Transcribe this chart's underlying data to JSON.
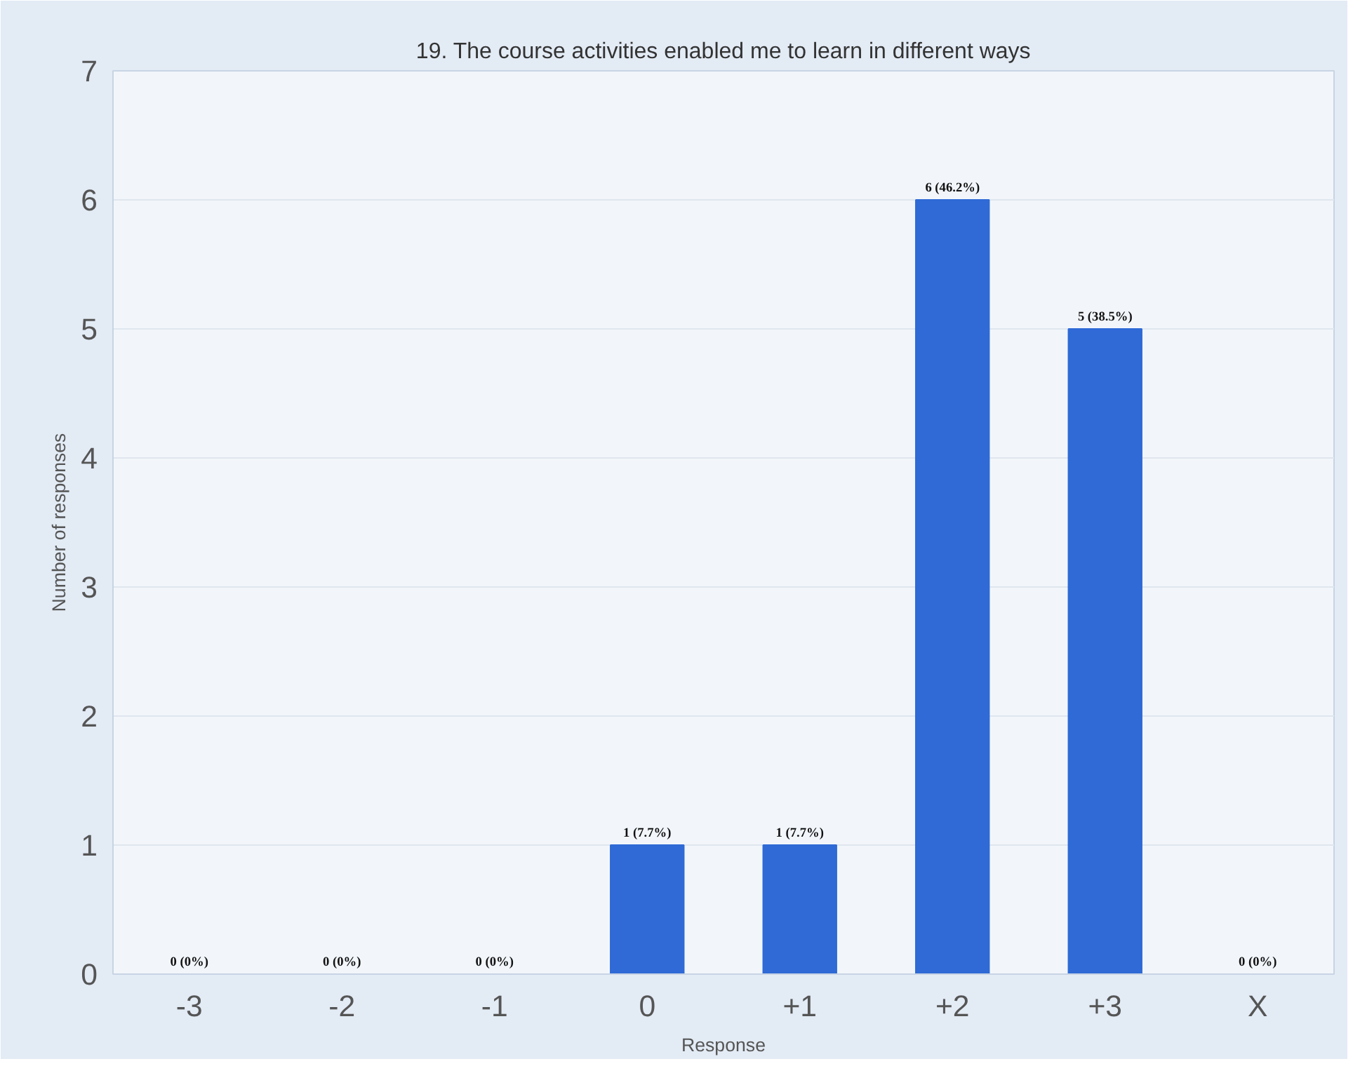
{
  "chart_data": {
    "type": "bar",
    "title": "19. The course activities enabled me to learn in different ways",
    "xlabel": "Response",
    "ylabel": "Number of responses",
    "categories": [
      "-3",
      "-2",
      "-1",
      "0",
      "+1",
      "+2",
      "+3",
      "X"
    ],
    "values": [
      0,
      0,
      0,
      1,
      1,
      6,
      5,
      0
    ],
    "value_labels": [
      "0 (0%)",
      "0 (0%)",
      "0 (0%)",
      "1 (7.7%)",
      "1 (7.7%)",
      "6 (46.2%)",
      "5 (38.5%)",
      "0 (0%)"
    ],
    "color": "#2f6ad6",
    "ylim": [
      0,
      7
    ],
    "yticks": [
      0,
      1,
      2,
      3,
      4,
      5,
      6,
      7
    ],
    "grid": "y"
  }
}
